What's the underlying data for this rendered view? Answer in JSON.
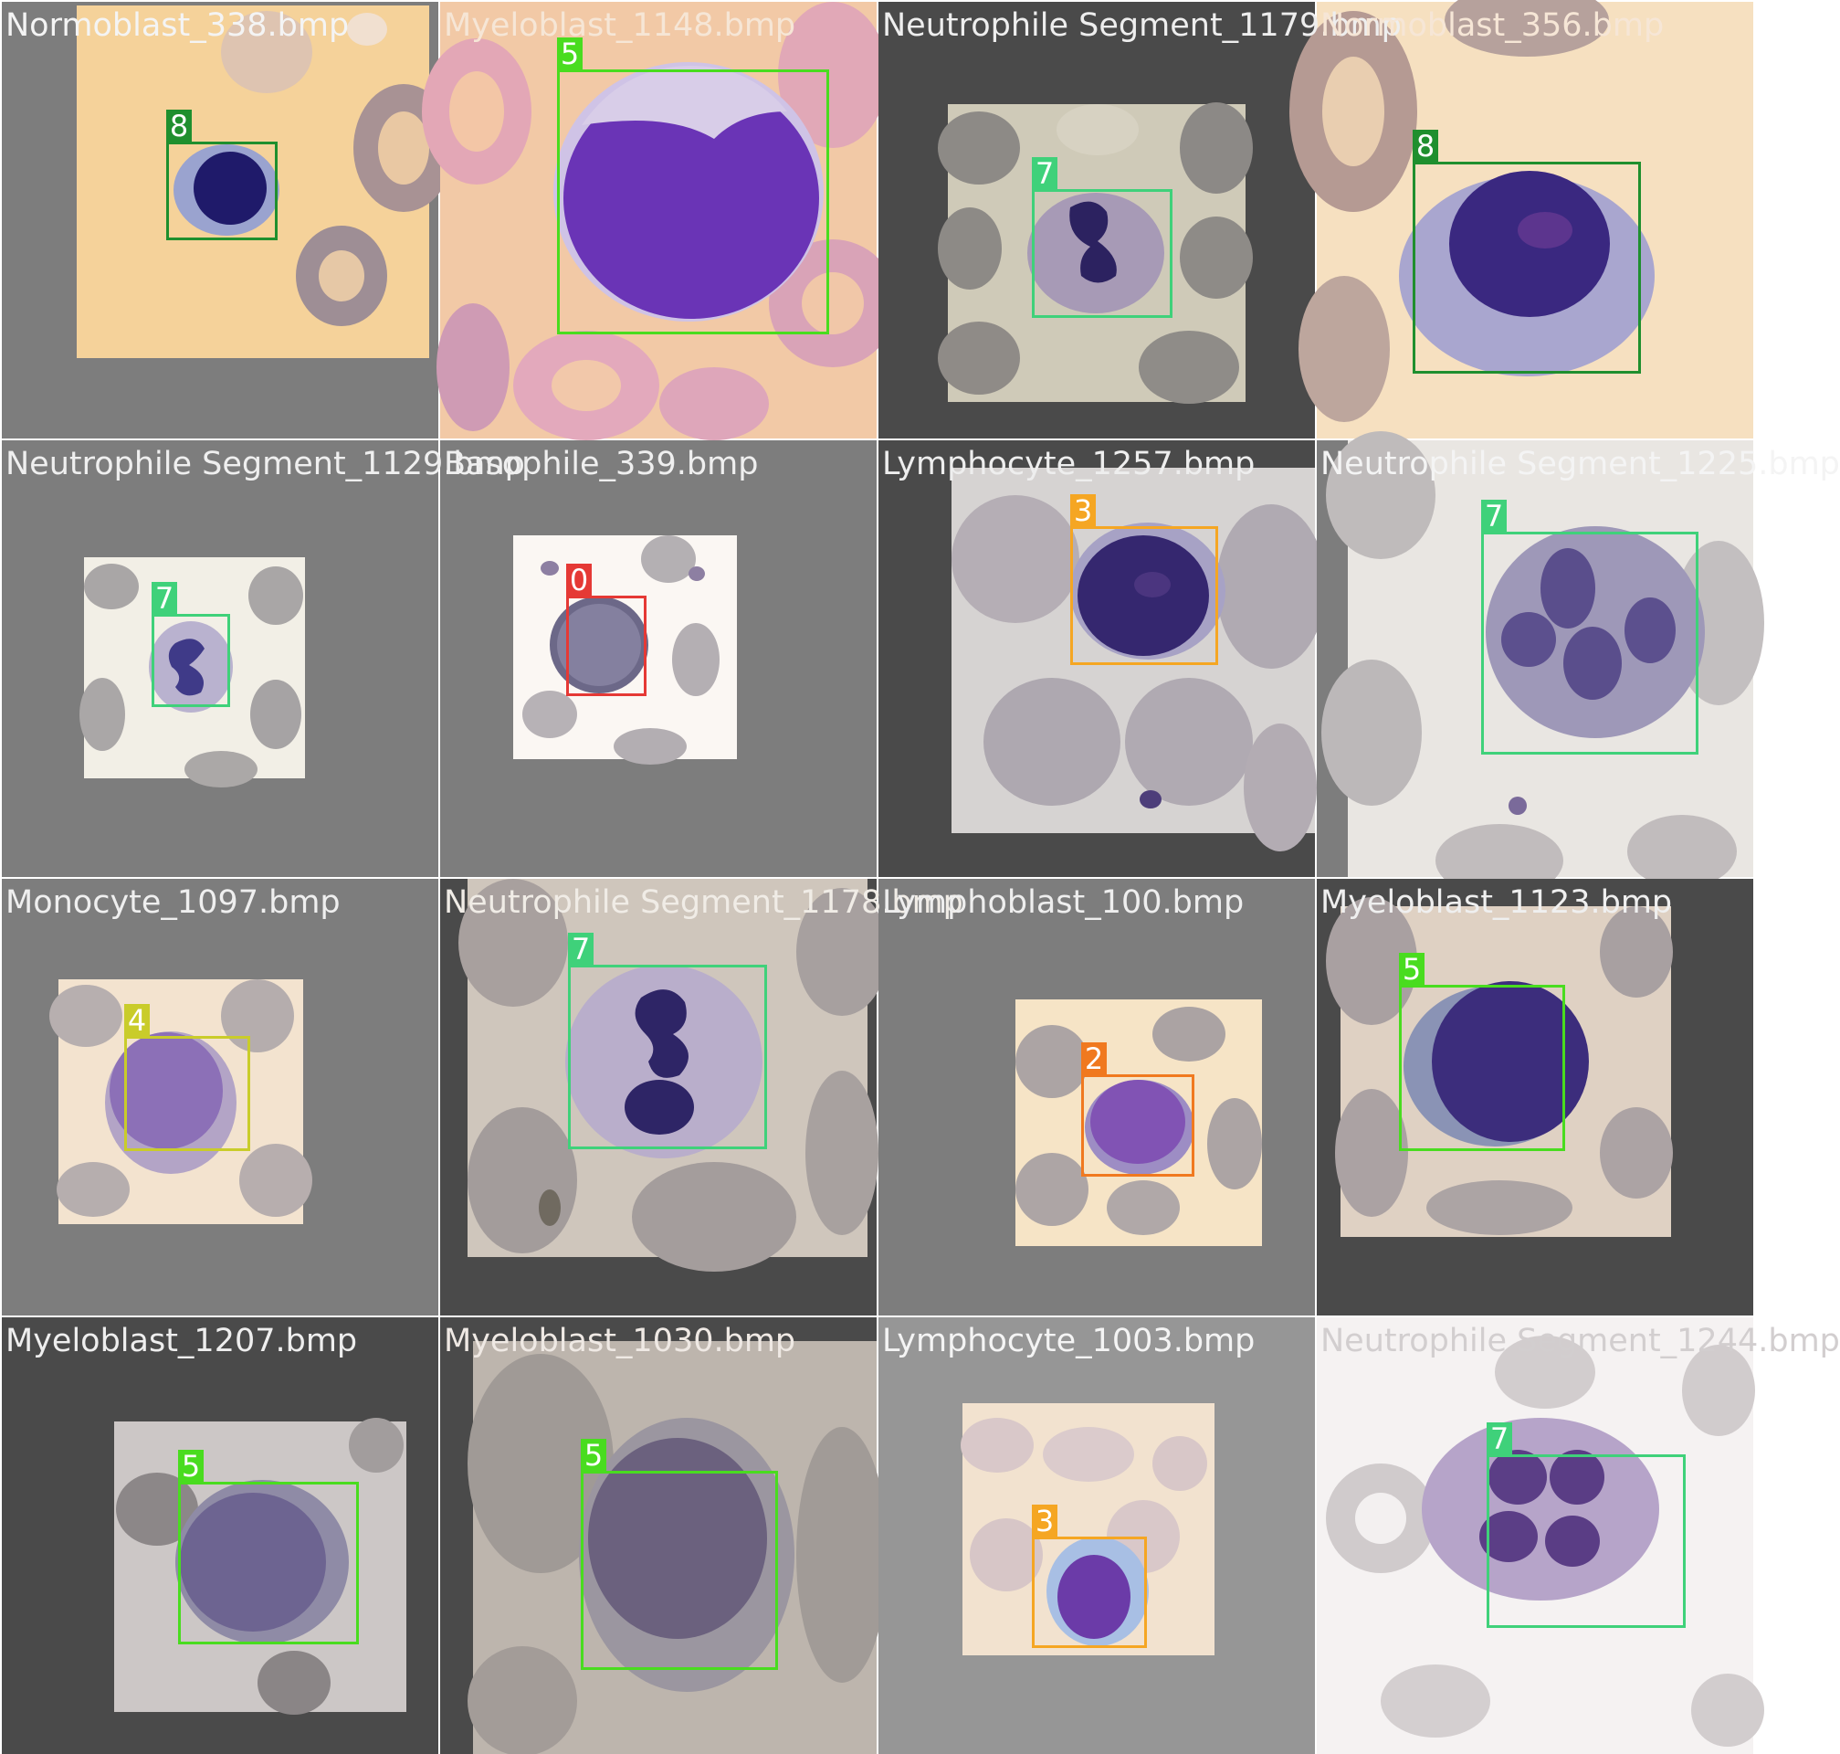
{
  "palette": {
    "class_0": "#e53935",
    "class_2": "#f0791f",
    "class_3": "#f5a623",
    "class_4": "#c9cc2a",
    "class_5": "#49dc1f",
    "class_7": "#3fd17a",
    "class_8": "#1f8f2e"
  },
  "tiles": [
    {
      "title": "Normoblast_338.bmp",
      "detections": [
        {
          "label": "8"
        }
      ]
    },
    {
      "title": "Myeloblast_1148.bmp",
      "detections": [
        {
          "label": "5"
        }
      ]
    },
    {
      "title": "Neutrophile Segment_1179.bmp",
      "detections": [
        {
          "label": "7"
        }
      ]
    },
    {
      "title": "Normoblast_356.bmp",
      "detections": [
        {
          "label": "8"
        }
      ]
    },
    {
      "title": "Neutrophile Segment_1129.bmp",
      "detections": [
        {
          "label": "7"
        }
      ]
    },
    {
      "title": "Basophile_339.bmp",
      "detections": [
        {
          "label": "0"
        }
      ]
    },
    {
      "title": "Lymphocyte_1257.bmp",
      "detections": [
        {
          "label": "3"
        }
      ]
    },
    {
      "title": "Neutrophile Segment_1225.bmp",
      "detections": [
        {
          "label": "7"
        }
      ]
    },
    {
      "title": "Monocyte_1097.bmp",
      "detections": [
        {
          "label": "4"
        }
      ]
    },
    {
      "title": "Neutrophile Segment_1178.bmp",
      "detections": [
        {
          "label": "7"
        }
      ]
    },
    {
      "title": "Lymphoblast_100.bmp",
      "detections": [
        {
          "label": "2"
        }
      ]
    },
    {
      "title": "Myeloblast_1123.bmp",
      "detections": [
        {
          "label": "5"
        }
      ]
    },
    {
      "title": "Myeloblast_1207.bmp",
      "detections": [
        {
          "label": "5"
        }
      ]
    },
    {
      "title": "Myeloblast_1030.bmp",
      "detections": [
        {
          "label": "5"
        }
      ]
    },
    {
      "title": "Lymphocyte_1003.bmp",
      "detections": [
        {
          "label": "3"
        }
      ]
    },
    {
      "title": "Neutrophile Segment_1244.bmp",
      "detections": [
        {
          "label": "7"
        }
      ]
    }
  ]
}
